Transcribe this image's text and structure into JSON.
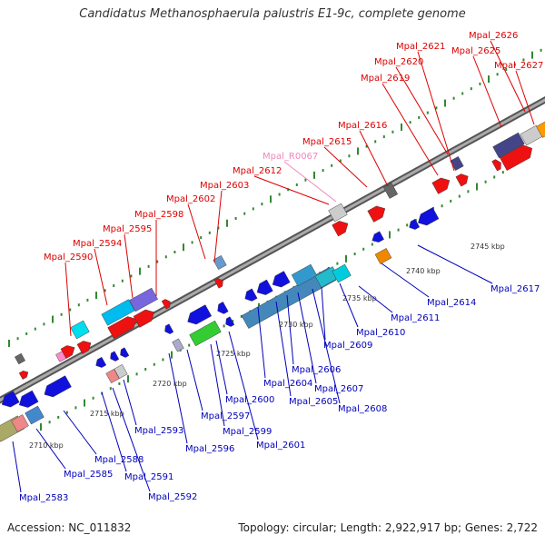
{
  "title": "Candidatus Methanosphaerula palustris E1-9c, complete genome",
  "footer": {
    "accession": "Accession: NC_011832",
    "summary": "Topology: circular; Length: 2,922,917 bp; Genes: 2,722"
  },
  "colors": {
    "forward_label": "#dd0000",
    "reverse_label": "#0000bb",
    "rna_label": "#ee88bb",
    "backbone": "#888888",
    "tick": "#338833"
  },
  "scale_labels": [
    "2710 kbp",
    "2715 kbp",
    "2720 kbp",
    "2725 kbp",
    "2730 kbp",
    "2735 kbp",
    "2740 kbp",
    "2745 kbp"
  ],
  "forward_genes": [
    "Mpal_2590",
    "Mpal_2594",
    "Mpal_2595",
    "Mpal_2598",
    "Mpal_2602",
    "Mpal_2603",
    "Mpal_2612",
    "Mpal_2615",
    "Mpal_2616",
    "Mpal_2619",
    "Mpal_2620",
    "Mpal_2621",
    "Mpal_2625",
    "Mpal_2626",
    "Mpal_2627"
  ],
  "rna_genes": [
    "Mpal_R0067"
  ],
  "reverse_genes": [
    "Mpal_2583",
    "Mpal_2585",
    "Mpal_2588",
    "Mpal_2591",
    "Mpal_2592",
    "Mpal_2593",
    "Mpal_2596",
    "Mpal_2597",
    "Mpal_2599",
    "Mpal_2600",
    "Mpal_2601",
    "Mpal_2604",
    "Mpal_2605",
    "Mpal_2606",
    "Mpal_2607",
    "Mpal_2608",
    "Mpal_2609",
    "Mpal_2610",
    "Mpal_2611",
    "Mpal_2614",
    "Mpal_2617"
  ]
}
